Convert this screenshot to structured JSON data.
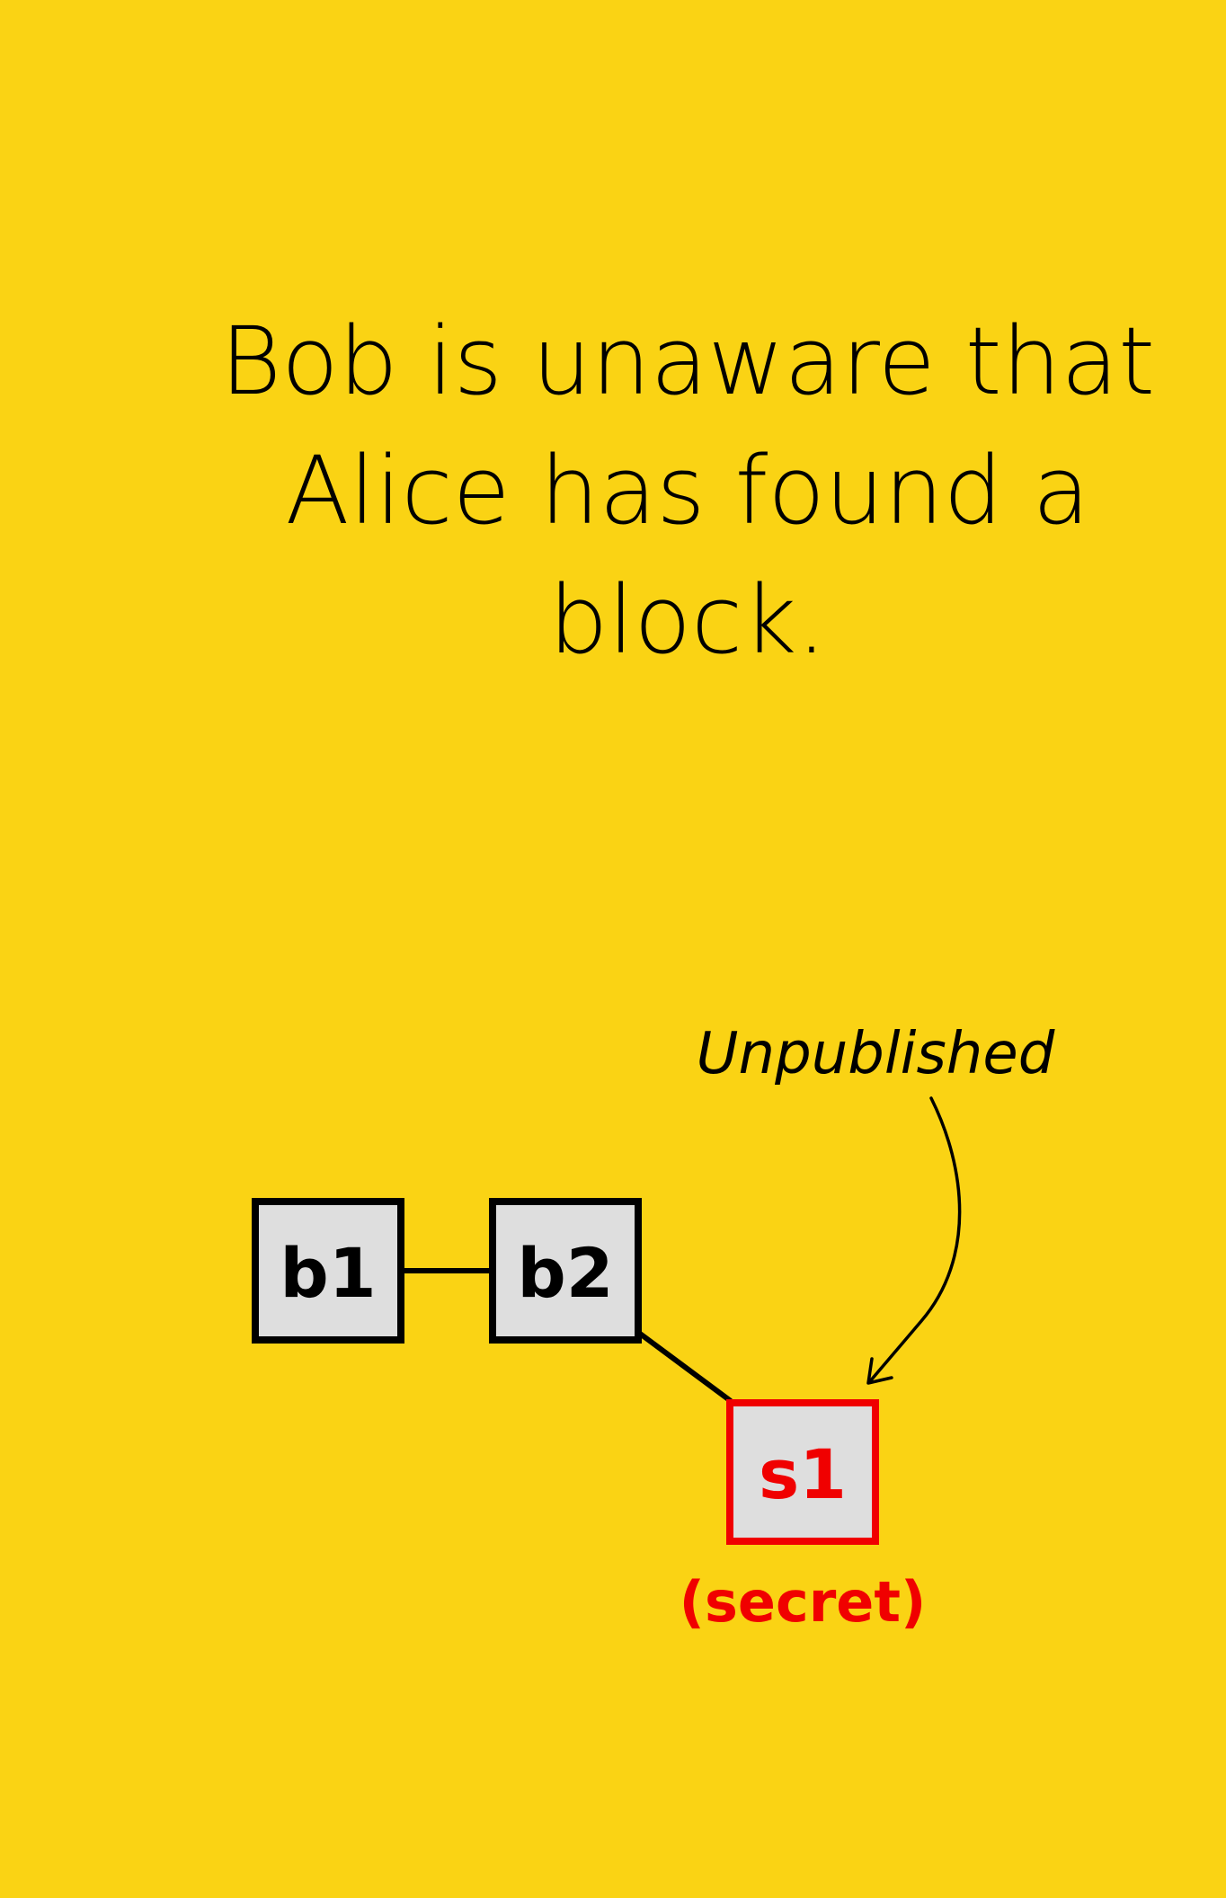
{
  "caption": {
    "line1": "Bob is unaware that",
    "line2": "Alice has found a",
    "line3": "block."
  },
  "blocks": [
    {
      "id": "b1",
      "label": "b1",
      "secret": false
    },
    {
      "id": "b2",
      "label": "b2",
      "secret": false
    },
    {
      "id": "s1",
      "label": "s1",
      "secret": true
    }
  ],
  "annotation": {
    "text": "Unpublished"
  },
  "secret_label": "(secret)",
  "colors": {
    "background": "#FAD314",
    "block_fill": "#DEDEDE",
    "block_border": "#000000",
    "secret": "#F00000"
  }
}
